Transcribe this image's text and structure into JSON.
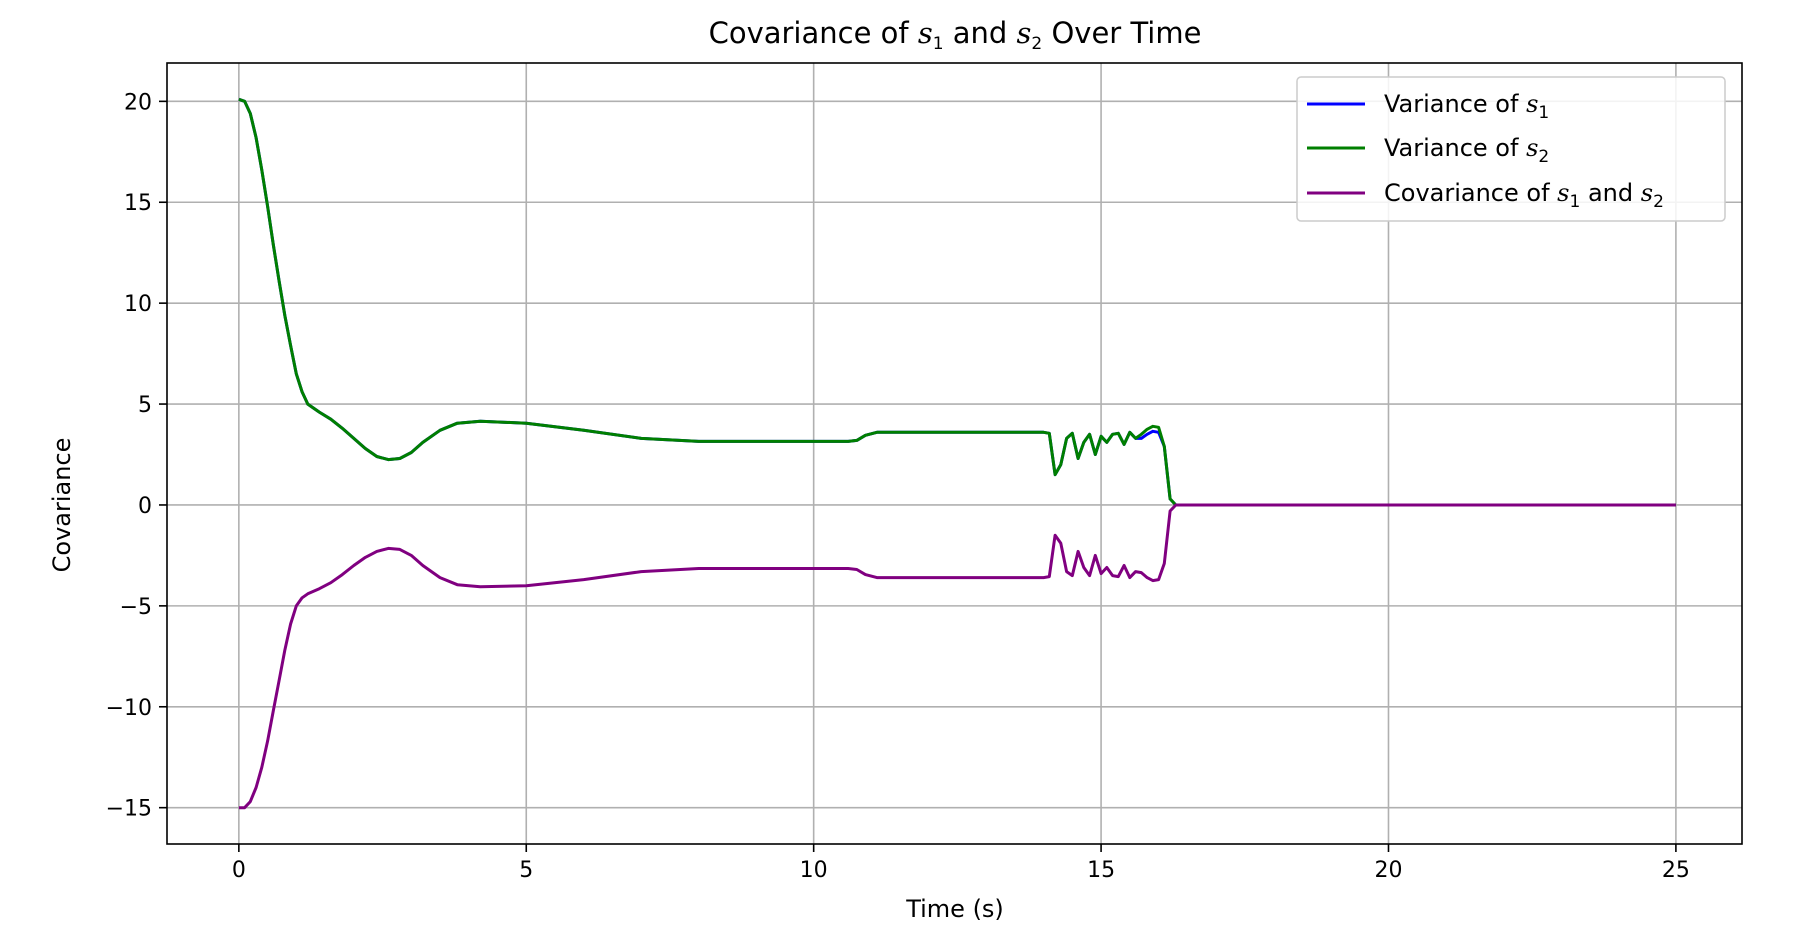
{
  "chart_data": {
    "type": "line",
    "title": {
      "pre": "Covariance of ",
      "v1": "s",
      "sub1": "1",
      "mid": " and ",
      "v2": "s",
      "sub2": "2",
      "post": " Over Time"
    },
    "xlabel": "Time (s)",
    "ylabel": "Covariance",
    "xlim": [
      -1.25,
      26.15
    ],
    "ylim": [
      -16.8,
      21.9
    ],
    "x_ticks": [
      0,
      5,
      10,
      15,
      20,
      25
    ],
    "x_tick_labels": [
      "0",
      "5",
      "10",
      "15",
      "20",
      "25"
    ],
    "y_ticks": [
      -15,
      -10,
      -5,
      0,
      5,
      10,
      15,
      20
    ],
    "y_tick_labels": [
      "−15",
      "−10",
      "−5",
      "0",
      "5",
      "10",
      "15",
      "20"
    ],
    "grid": true,
    "legend_position": "top-right",
    "series": [
      {
        "key": "var1",
        "legend": {
          "pre": "Variance of ",
          "var": "s",
          "sub": "1",
          "mid": "",
          "var2": "",
          "sub2": ""
        },
        "color": "#0000ff",
        "points": [
          [
            0,
            20.1
          ],
          [
            0.1,
            20.0
          ],
          [
            0.2,
            19.4
          ],
          [
            0.3,
            18.2
          ],
          [
            0.4,
            16.6
          ],
          [
            0.5,
            14.8
          ],
          [
            0.6,
            12.9
          ],
          [
            0.7,
            11.1
          ],
          [
            0.8,
            9.4
          ],
          [
            0.9,
            7.9
          ],
          [
            1.0,
            6.5
          ],
          [
            1.1,
            5.6
          ],
          [
            1.2,
            5.0
          ],
          [
            1.4,
            4.6
          ],
          [
            1.6,
            4.25
          ],
          [
            1.8,
            3.8
          ],
          [
            2.0,
            3.3
          ],
          [
            2.2,
            2.8
          ],
          [
            2.4,
            2.4
          ],
          [
            2.6,
            2.25
          ],
          [
            2.8,
            2.3
          ],
          [
            3.0,
            2.6
          ],
          [
            3.2,
            3.1
          ],
          [
            3.5,
            3.7
          ],
          [
            3.8,
            4.05
          ],
          [
            4.2,
            4.15
          ],
          [
            5.0,
            4.05
          ],
          [
            6.0,
            3.7
          ],
          [
            7.0,
            3.3
          ],
          [
            8.0,
            3.15
          ],
          [
            10.6,
            3.15
          ],
          [
            10.75,
            3.2
          ],
          [
            10.9,
            3.45
          ],
          [
            11.1,
            3.6
          ],
          [
            12.5,
            3.6
          ],
          [
            14.0,
            3.6
          ],
          [
            14.1,
            3.55
          ],
          [
            14.2,
            1.5
          ],
          [
            14.3,
            2.0
          ],
          [
            14.4,
            3.3
          ],
          [
            14.5,
            3.55
          ],
          [
            14.6,
            2.3
          ],
          [
            14.7,
            3.1
          ],
          [
            14.8,
            3.5
          ],
          [
            14.9,
            2.5
          ],
          [
            15.0,
            3.4
          ],
          [
            15.1,
            3.1
          ],
          [
            15.2,
            3.5
          ],
          [
            15.3,
            3.55
          ],
          [
            15.4,
            3.0
          ],
          [
            15.5,
            3.6
          ],
          [
            15.6,
            3.3
          ],
          [
            15.7,
            3.3
          ],
          [
            15.8,
            3.5
          ],
          [
            15.9,
            3.65
          ],
          [
            16.0,
            3.6
          ],
          [
            16.1,
            2.9
          ],
          [
            16.2,
            0.3
          ],
          [
            16.3,
            0.0
          ],
          [
            18.0,
            0.0
          ],
          [
            25.0,
            0.0
          ]
        ]
      },
      {
        "key": "var2",
        "legend": {
          "pre": "Variance of ",
          "var": "s",
          "sub": "2",
          "mid": "",
          "var2": "",
          "sub2": ""
        },
        "color": "#007f00",
        "points": [
          [
            0,
            20.1
          ],
          [
            0.1,
            20.0
          ],
          [
            0.2,
            19.4
          ],
          [
            0.3,
            18.2
          ],
          [
            0.4,
            16.6
          ],
          [
            0.5,
            14.8
          ],
          [
            0.6,
            12.9
          ],
          [
            0.7,
            11.1
          ],
          [
            0.8,
            9.4
          ],
          [
            0.9,
            7.9
          ],
          [
            1.0,
            6.5
          ],
          [
            1.1,
            5.6
          ],
          [
            1.2,
            5.0
          ],
          [
            1.4,
            4.6
          ],
          [
            1.6,
            4.25
          ],
          [
            1.8,
            3.8
          ],
          [
            2.0,
            3.3
          ],
          [
            2.2,
            2.8
          ],
          [
            2.4,
            2.4
          ],
          [
            2.6,
            2.25
          ],
          [
            2.8,
            2.3
          ],
          [
            3.0,
            2.6
          ],
          [
            3.2,
            3.1
          ],
          [
            3.5,
            3.7
          ],
          [
            3.8,
            4.05
          ],
          [
            4.2,
            4.15
          ],
          [
            5.0,
            4.05
          ],
          [
            6.0,
            3.7
          ],
          [
            7.0,
            3.3
          ],
          [
            8.0,
            3.15
          ],
          [
            10.6,
            3.15
          ],
          [
            10.75,
            3.2
          ],
          [
            10.9,
            3.45
          ],
          [
            11.1,
            3.6
          ],
          [
            12.5,
            3.6
          ],
          [
            14.0,
            3.6
          ],
          [
            14.1,
            3.55
          ],
          [
            14.2,
            1.5
          ],
          [
            14.3,
            2.0
          ],
          [
            14.4,
            3.3
          ],
          [
            14.5,
            3.55
          ],
          [
            14.6,
            2.3
          ],
          [
            14.7,
            3.1
          ],
          [
            14.8,
            3.5
          ],
          [
            14.9,
            2.5
          ],
          [
            15.0,
            3.4
          ],
          [
            15.1,
            3.1
          ],
          [
            15.2,
            3.5
          ],
          [
            15.3,
            3.55
          ],
          [
            15.4,
            3.0
          ],
          [
            15.5,
            3.6
          ],
          [
            15.6,
            3.3
          ],
          [
            15.7,
            3.5
          ],
          [
            15.8,
            3.75
          ],
          [
            15.9,
            3.9
          ],
          [
            16.0,
            3.85
          ],
          [
            16.1,
            2.9
          ],
          [
            16.2,
            0.3
          ],
          [
            16.3,
            0.0
          ],
          [
            18.0,
            0.0
          ],
          [
            25.0,
            0.0
          ]
        ]
      },
      {
        "key": "cov",
        "legend": {
          "pre": "Covariance of ",
          "var": "s",
          "sub": "1",
          "mid": " and ",
          "var2": "s",
          "sub2": "2"
        },
        "color": "#800080",
        "points": [
          [
            0,
            -15.0
          ],
          [
            0.1,
            -15.0
          ],
          [
            0.2,
            -14.7
          ],
          [
            0.3,
            -14.0
          ],
          [
            0.4,
            -13.0
          ],
          [
            0.5,
            -11.7
          ],
          [
            0.6,
            -10.2
          ],
          [
            0.7,
            -8.7
          ],
          [
            0.8,
            -7.2
          ],
          [
            0.9,
            -5.9
          ],
          [
            1.0,
            -5.0
          ],
          [
            1.1,
            -4.6
          ],
          [
            1.2,
            -4.4
          ],
          [
            1.4,
            -4.15
          ],
          [
            1.6,
            -3.85
          ],
          [
            1.8,
            -3.45
          ],
          [
            2.0,
            -3.0
          ],
          [
            2.2,
            -2.6
          ],
          [
            2.4,
            -2.3
          ],
          [
            2.6,
            -2.15
          ],
          [
            2.8,
            -2.2
          ],
          [
            3.0,
            -2.5
          ],
          [
            3.2,
            -3.0
          ],
          [
            3.5,
            -3.6
          ],
          [
            3.8,
            -3.95
          ],
          [
            4.2,
            -4.05
          ],
          [
            5.0,
            -4.0
          ],
          [
            6.0,
            -3.7
          ],
          [
            7.0,
            -3.3
          ],
          [
            8.0,
            -3.15
          ],
          [
            10.6,
            -3.15
          ],
          [
            10.75,
            -3.2
          ],
          [
            10.9,
            -3.45
          ],
          [
            11.1,
            -3.6
          ],
          [
            12.5,
            -3.6
          ],
          [
            14.0,
            -3.6
          ],
          [
            14.1,
            -3.55
          ],
          [
            14.2,
            -1.5
          ],
          [
            14.3,
            -1.9
          ],
          [
            14.4,
            -3.3
          ],
          [
            14.5,
            -3.5
          ],
          [
            14.6,
            -2.3
          ],
          [
            14.7,
            -3.1
          ],
          [
            14.8,
            -3.5
          ],
          [
            14.9,
            -2.5
          ],
          [
            15.0,
            -3.4
          ],
          [
            15.1,
            -3.1
          ],
          [
            15.2,
            -3.5
          ],
          [
            15.3,
            -3.55
          ],
          [
            15.4,
            -3.0
          ],
          [
            15.5,
            -3.6
          ],
          [
            15.6,
            -3.3
          ],
          [
            15.7,
            -3.35
          ],
          [
            15.8,
            -3.6
          ],
          [
            15.9,
            -3.75
          ],
          [
            16.0,
            -3.7
          ],
          [
            16.1,
            -2.9
          ],
          [
            16.2,
            -0.3
          ],
          [
            16.3,
            0.0
          ],
          [
            18.0,
            0.0
          ],
          [
            25.0,
            0.0
          ]
        ]
      }
    ]
  }
}
